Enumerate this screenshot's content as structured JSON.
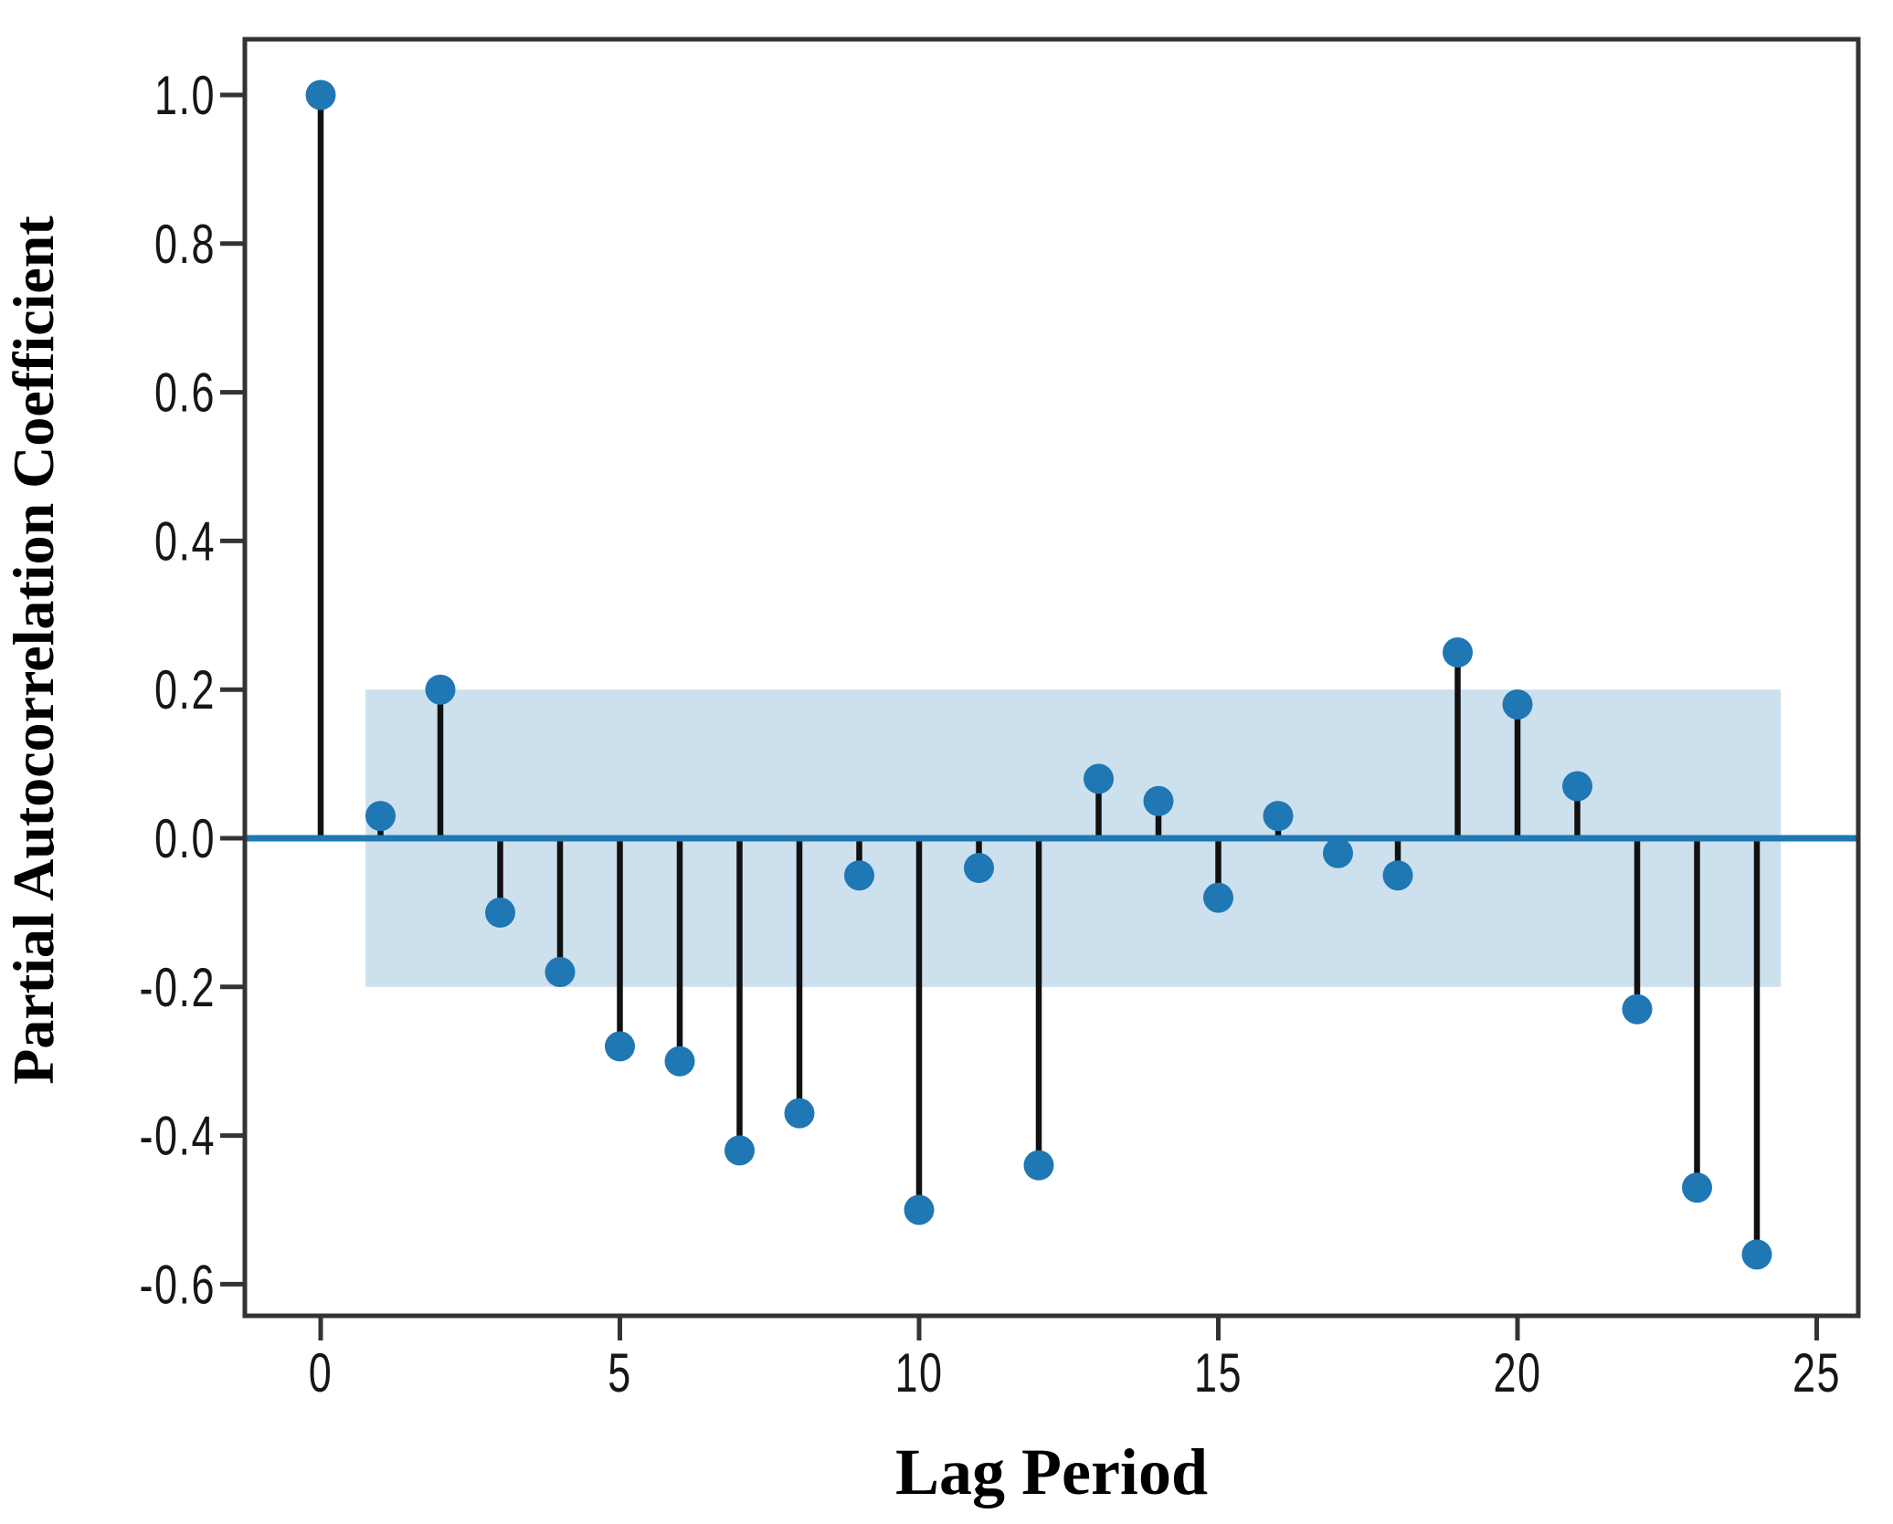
{
  "figure": {
    "background": "#ffffff",
    "description": "Stem (lollipop) plot of partial autocorrelation coefficients by lag with a shaded 95% confidence band"
  },
  "chart_data": {
    "type": "scatter",
    "variant": "stem-lollipop (PACF plot)",
    "title": "",
    "xlabel": "Lag Period",
    "ylabel": "Partial Autocorrelation Coefficient",
    "lags": [
      0,
      1,
      2,
      3,
      4,
      5,
      6,
      7,
      8,
      9,
      10,
      11,
      12,
      13,
      14,
      15,
      16,
      17,
      18,
      19,
      20,
      21,
      22,
      23,
      24
    ],
    "pacf": [
      1.0,
      0.03,
      0.2,
      -0.1,
      -0.18,
      -0.28,
      -0.3,
      -0.42,
      -0.37,
      -0.05,
      -0.5,
      -0.04,
      -0.44,
      0.08,
      0.05,
      -0.08,
      0.03,
      -0.02,
      -0.05,
      0.25,
      0.18,
      0.07,
      -0.23,
      -0.47,
      -0.56
    ],
    "xlim": [
      -1.25,
      25.7
    ],
    "ylim": [
      -0.645,
      1.075
    ],
    "xticks": [
      0,
      5,
      10,
      15,
      20,
      25
    ],
    "xtick_labels": [
      "0",
      "5",
      "10",
      "15",
      "20",
      "25"
    ],
    "yticks": [
      1.0,
      0.8,
      0.6,
      0.4,
      0.2,
      0.0,
      -0.2,
      -0.4,
      -0.6
    ],
    "ytick_labels": [
      "1.0",
      "0.8",
      "0.6",
      "0.4",
      "0.2",
      "0.0",
      "-0.2",
      "-0.4",
      "-0.6"
    ],
    "zero_line": 0.0,
    "confidence_band": {
      "lower": -0.2,
      "upper": 0.2,
      "x_start": 0.75,
      "x_end": 24.4
    },
    "grid": false,
    "legend": null,
    "colors": {
      "marker": "#1f77b4",
      "stem": "#111111",
      "zero_line": "#1f77b4",
      "band": "#cde0ee",
      "axis": "#333333",
      "text": "#000000"
    }
  }
}
